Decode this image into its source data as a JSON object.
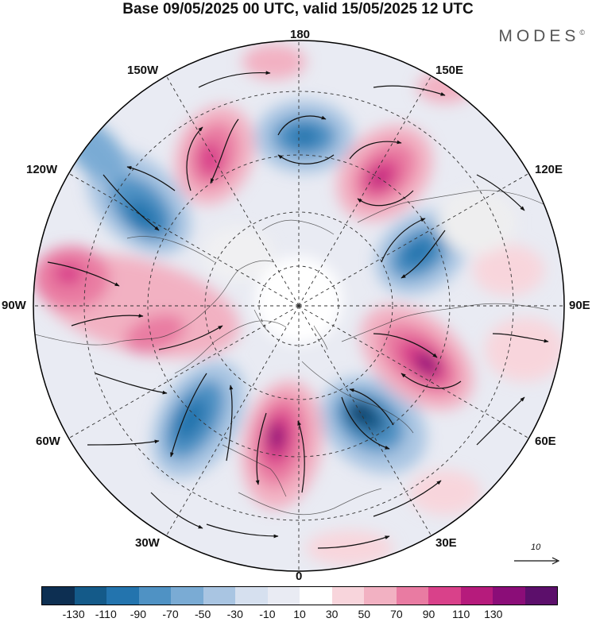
{
  "title": "Base 09/05/2025 00 UTC, valid 15/05/2025 12 UTC",
  "brand": {
    "name": "MODES",
    "mark": "©"
  },
  "longitude_labels": {
    "top": "180",
    "bottom": "0",
    "left": "90W",
    "right": "90E",
    "nw1": "150W",
    "nw2": "120W",
    "ne1": "150E",
    "ne2": "120E",
    "sw1": "60W",
    "sw2": "30W",
    "se1": "60E",
    "se2": "30E"
  },
  "reference_vector": {
    "label": "10"
  },
  "colorbar": {
    "ticks": [
      "-130",
      "-110",
      "-90",
      "-70",
      "-50",
      "-30",
      "-10",
      "10",
      "30",
      "50",
      "70",
      "90",
      "110",
      "130"
    ],
    "colors": [
      "#0d2f52",
      "#145a89",
      "#2374ae",
      "#4f92c4",
      "#7aabd4",
      "#a9c5e2",
      "#d6e0ef",
      "#e9ebf3",
      "#ffffff",
      "#f8d5dc",
      "#f2b1c2",
      "#e97ba2",
      "#d9418a",
      "#b61b7c",
      "#8b0d78",
      "#5c0f6b"
    ]
  }
}
